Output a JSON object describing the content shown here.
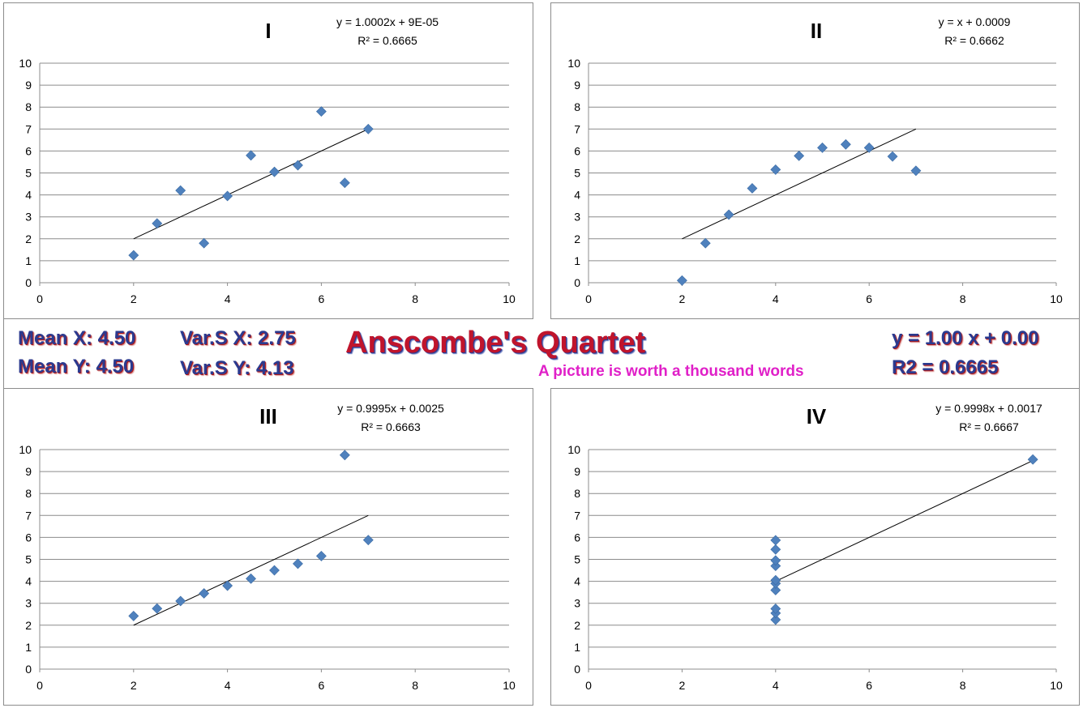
{
  "summary": {
    "title": "Anscombe's Quartet",
    "subtitle": "A picture is worth a thousand words",
    "mean_x": "Mean X: 4.50",
    "mean_y": "Mean Y: 4.50",
    "var_x": "Var.S X: 2.75",
    "var_y": "Var.S Y: 4.13",
    "fit_eq": "y = 1.00 x + 0.00",
    "fit_r2": "R2 = 0.6665"
  },
  "colors": {
    "marker": "#4f81bd",
    "title": "#c0142c",
    "stats": "#2b3a8f",
    "subtitle": "#e020c8"
  },
  "chart_data": [
    {
      "type": "scatter",
      "title": "I",
      "equation": "y = 1.0002x + 9E-05",
      "r2_label": "R² = 0.6665",
      "xlim": [
        0,
        10
      ],
      "ylim": [
        0,
        10
      ],
      "xticks": [
        0,
        2,
        4,
        6,
        8,
        10
      ],
      "yticks": [
        0,
        1,
        2,
        3,
        4,
        5,
        6,
        7,
        8,
        9,
        10
      ],
      "grid": true,
      "points": [
        [
          2,
          1.25
        ],
        [
          2.5,
          2.7
        ],
        [
          3,
          4.2
        ],
        [
          3.5,
          1.8
        ],
        [
          4,
          3.95
        ],
        [
          4.5,
          5.8
        ],
        [
          5,
          5.05
        ],
        [
          5.5,
          5.35
        ],
        [
          6,
          7.8
        ],
        [
          6.5,
          4.55
        ],
        [
          7,
          7.0
        ]
      ],
      "trend": {
        "slope": 1.0002,
        "intercept": 9e-05,
        "x_from": 2,
        "x_to": 7
      }
    },
    {
      "type": "scatter",
      "title": "II",
      "equation": "y = x + 0.0009",
      "r2_label": "R² = 0.6662",
      "xlim": [
        0,
        10
      ],
      "ylim": [
        0,
        10
      ],
      "xticks": [
        0,
        2,
        4,
        6,
        8,
        10
      ],
      "yticks": [
        0,
        1,
        2,
        3,
        4,
        5,
        6,
        7,
        8,
        9,
        10
      ],
      "grid": true,
      "points": [
        [
          2,
          0.1
        ],
        [
          2.5,
          1.8
        ],
        [
          3,
          3.1
        ],
        [
          3.5,
          4.3
        ],
        [
          4,
          5.15
        ],
        [
          4.5,
          5.78
        ],
        [
          5,
          6.15
        ],
        [
          5.5,
          6.3
        ],
        [
          6,
          6.15
        ],
        [
          6.5,
          5.75
        ],
        [
          7,
          5.1
        ]
      ],
      "trend": {
        "slope": 1.0,
        "intercept": 0.0009,
        "x_from": 2,
        "x_to": 7
      }
    },
    {
      "type": "scatter",
      "title": "III",
      "equation": "y = 0.9995x + 0.0025",
      "r2_label": "R² = 0.6663",
      "xlim": [
        0,
        10
      ],
      "ylim": [
        0,
        10
      ],
      "xticks": [
        0,
        2,
        4,
        6,
        8,
        10
      ],
      "yticks": [
        0,
        1,
        2,
        3,
        4,
        5,
        6,
        7,
        8,
        9,
        10
      ],
      "grid": true,
      "points": [
        [
          2,
          2.42
        ],
        [
          2.5,
          2.76
        ],
        [
          3,
          3.1
        ],
        [
          3.5,
          3.45
        ],
        [
          4,
          3.8
        ],
        [
          4.5,
          4.12
        ],
        [
          5,
          4.5
        ],
        [
          5.5,
          4.8
        ],
        [
          6,
          5.15
        ],
        [
          6.5,
          9.75
        ],
        [
          7,
          5.88
        ]
      ],
      "trend": {
        "slope": 0.9995,
        "intercept": 0.0025,
        "x_from": 2,
        "x_to": 7
      }
    },
    {
      "type": "scatter",
      "title": "IV",
      "equation": "y = 0.9998x + 0.0017",
      "r2_label": "R² = 0.6667",
      "xlim": [
        0,
        10
      ],
      "ylim": [
        0,
        10
      ],
      "xticks": [
        0,
        2,
        4,
        6,
        8,
        10
      ],
      "yticks": [
        0,
        1,
        2,
        3,
        4,
        5,
        6,
        7,
        8,
        9,
        10
      ],
      "grid": true,
      "points": [
        [
          4,
          2.25
        ],
        [
          4,
          2.55
        ],
        [
          4,
          2.75
        ],
        [
          4,
          3.6
        ],
        [
          4,
          3.9
        ],
        [
          4,
          4.05
        ],
        [
          4,
          4.7
        ],
        [
          4,
          4.95
        ],
        [
          4,
          5.45
        ],
        [
          4,
          5.87
        ],
        [
          9.5,
          9.55
        ]
      ],
      "trend": {
        "slope": 0.9998,
        "intercept": 0.0017,
        "x_from": 4,
        "x_to": 9.5
      }
    }
  ]
}
